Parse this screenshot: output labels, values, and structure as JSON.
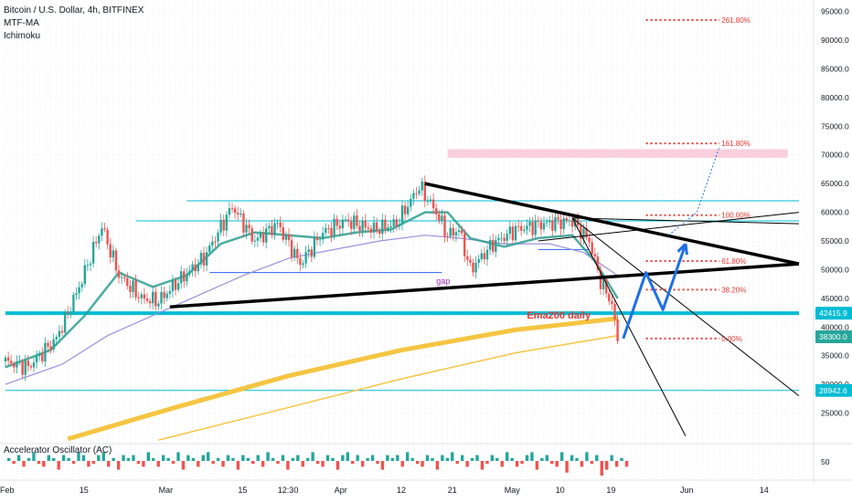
{
  "legend": {
    "symbol": "Bitcoin / U.S. Dollar, 4h, BITFINEX",
    "ind1": "MTF-MA",
    "ind2": "Ichimoku"
  },
  "oscillator": {
    "title": "Accelerator Oscillator (AC)",
    "scale_label": "50"
  },
  "colors": {
    "candle_up": "#26a69a",
    "candle_down": "#ef5350",
    "ema_teal": "#2e9e8f",
    "ema_purple": "#9c8fdc",
    "ema200": "#f5c542",
    "cyan": "#00bcd4",
    "black": "#000000",
    "fib_red": "#e53935",
    "arrow_blue": "#1e6fe6",
    "zone_pink": "#f8bbd0"
  },
  "chart_data": {
    "type": "line",
    "title": "Bitcoin / U.S. Dollar, 4h, BITFINEX",
    "ylim": [
      20000,
      97000
    ],
    "y_ticks": [
      "95000.0",
      "90000.0",
      "85000.0",
      "80000.0",
      "75000.0",
      "70000.0",
      "65000.0",
      "60000.0",
      "55000.0",
      "50000.0",
      "45000.0",
      "40000.0",
      "35000.0",
      "30000.0",
      "25000.0"
    ],
    "y_tick_values": [
      95000,
      90000,
      85000,
      80000,
      75000,
      70000,
      65000,
      60000,
      55000,
      50000,
      45000,
      40000,
      35000,
      30000,
      25000
    ],
    "x_ticks": [
      "Feb",
      "15",
      "Mar",
      "15",
      "12:30",
      "Apr",
      "12",
      "21",
      "May",
      "10",
      "19",
      "Jun",
      "14"
    ],
    "x_tick_days": [
      0,
      14,
      28,
      42,
      49,
      59,
      70,
      79,
      89,
      98,
      107,
      120,
      134
    ],
    "price_tags": [
      {
        "label": "42415.9",
        "value": 42415.9,
        "color": "#00bcd4"
      },
      {
        "label": "38300.0",
        "value": 38300,
        "color": "#26a69a"
      },
      {
        "label": "28942.6",
        "value": 28942.6,
        "color": "#00bcd4"
      }
    ],
    "price_path": [
      [
        0,
        34000
      ],
      [
        4,
        33000
      ],
      [
        9,
        38000
      ],
      [
        13,
        47000
      ],
      [
        17,
        57500
      ],
      [
        20,
        49000
      ],
      [
        24,
        45000
      ],
      [
        27,
        44500
      ],
      [
        30,
        47500
      ],
      [
        35,
        52000
      ],
      [
        40,
        61000
      ],
      [
        44,
        55000
      ],
      [
        48,
        58000
      ],
      [
        52,
        51000
      ],
      [
        56,
        56500
      ],
      [
        60,
        58500
      ],
      [
        65,
        57000
      ],
      [
        69,
        58000
      ],
      [
        73,
        64500
      ],
      [
        76,
        60000
      ],
      [
        78,
        56000
      ],
      [
        80,
        57000
      ],
      [
        82,
        50000
      ],
      [
        86,
        54500
      ],
      [
        90,
        57000
      ],
      [
        95,
        58000
      ],
      [
        100,
        58500
      ],
      [
        103,
        55000
      ],
      [
        105,
        48000
      ],
      [
        107,
        44000
      ],
      [
        108,
        37500
      ]
    ],
    "ema_teal": [
      [
        0,
        33000
      ],
      [
        8,
        36000
      ],
      [
        14,
        42000
      ],
      [
        20,
        49500
      ],
      [
        26,
        47000
      ],
      [
        32,
        49000
      ],
      [
        38,
        54500
      ],
      [
        44,
        56500
      ],
      [
        50,
        56000
      ],
      [
        56,
        55500
      ],
      [
        62,
        56500
      ],
      [
        68,
        57000
      ],
      [
        74,
        60000
      ],
      [
        78,
        60000
      ],
      [
        82,
        55500
      ],
      [
        88,
        54000
      ],
      [
        94,
        55500
      ],
      [
        100,
        56000
      ],
      [
        104,
        51500
      ],
      [
        108,
        45000
      ]
    ],
    "ema_purple": [
      [
        0,
        30000
      ],
      [
        10,
        33500
      ],
      [
        18,
        38500
      ],
      [
        26,
        42000
      ],
      [
        34,
        45500
      ],
      [
        42,
        49000
      ],
      [
        50,
        52000
      ],
      [
        58,
        53500
      ],
      [
        66,
        55000
      ],
      [
        74,
        56000
      ],
      [
        80,
        55500
      ],
      [
        88,
        54500
      ],
      [
        96,
        54500
      ],
      [
        102,
        53000
      ],
      [
        108,
        49000
      ]
    ],
    "ema200_daily": [
      [
        11,
        20500
      ],
      [
        30,
        26000
      ],
      [
        50,
        31500
      ],
      [
        70,
        36000
      ],
      [
        90,
        39500
      ],
      [
        108,
        41500
      ]
    ],
    "ema200_thin": [
      [
        27,
        20300
      ],
      [
        50,
        26000
      ],
      [
        70,
        31000
      ],
      [
        90,
        35500
      ],
      [
        108,
        38500
      ]
    ],
    "levels": [
      {
        "kind": "cyan",
        "value": 62000,
        "x0": 32,
        "x1": 140
      },
      {
        "kind": "cyan",
        "value": 58500,
        "x0": 23,
        "x1": 140
      },
      {
        "kind": "cyan",
        "value": 42415.9,
        "x0": 0,
        "x1": 140
      },
      {
        "kind": "cyan",
        "value": 28942.6,
        "x0": 0,
        "x1": 140
      },
      {
        "kind": "blue_thin",
        "value": 49500,
        "x0": 36,
        "x1": 77
      },
      {
        "kind": "blue_thin",
        "value": 53500,
        "x0": 94,
        "x1": 103
      }
    ],
    "trendlines": [
      {
        "kind": "black_thick",
        "p0": [
          29,
          43500
        ],
        "p1": [
          140,
          51000
        ]
      },
      {
        "kind": "black_thick",
        "p0": [
          74,
          65000
        ],
        "p1": [
          140,
          51000
        ]
      },
      {
        "kind": "black_thin",
        "p0": [
          100,
          59000
        ],
        "p1": [
          140,
          58000
        ]
      },
      {
        "kind": "black_thin",
        "p0": [
          100,
          59000
        ],
        "p1": [
          140,
          28000
        ]
      },
      {
        "kind": "black_thin",
        "p0": [
          100,
          59000
        ],
        "p1": [
          120,
          21000
        ]
      },
      {
        "kind": "black_thin",
        "p0": [
          94,
          55000
        ],
        "p1": [
          140,
          60000
        ]
      }
    ],
    "fib_levels": [
      {
        "label": "261.80%",
        "value": 93500
      },
      {
        "label": "161.80%",
        "value": 72000
      },
      {
        "label": "100.00%",
        "value": 59500
      },
      {
        "label": "61.80%",
        "value": 51500
      },
      {
        "label": "38.20%",
        "value": 46500
      },
      {
        "label": "0.00%",
        "value": 38000
      }
    ],
    "fib_x_range": [
      113,
      126
    ],
    "resistance_zone": {
      "y0": 69500,
      "y1": 71000,
      "x0": 78,
      "x1": 138
    },
    "projection_arrow": [
      [
        109,
        38000
      ],
      [
        113,
        49500
      ],
      [
        116,
        43000
      ],
      [
        120,
        54500
      ]
    ],
    "projection_dotted": [
      [
        117,
        56000
      ],
      [
        122,
        60000
      ],
      [
        126,
        71500
      ]
    ],
    "annotations": [
      {
        "label": "Ema200 daily",
        "x": 92,
        "value": 41500,
        "color": "#e53935"
      },
      {
        "label": "gap",
        "x": 76,
        "value": 47500,
        "color": "#9c27b0"
      }
    ],
    "oscillator_bars": [
      1,
      -1,
      2,
      -2,
      1,
      3,
      -1,
      -2,
      2,
      1,
      -3,
      2,
      1,
      -1,
      3,
      2,
      -2,
      -1,
      2,
      3,
      -2,
      1,
      -3,
      2,
      1,
      2,
      -1,
      -2,
      3,
      1,
      -2,
      2,
      1,
      -1,
      3,
      -3,
      2,
      1,
      -2,
      2,
      3,
      -1,
      1,
      -2,
      2,
      1,
      -3,
      2,
      1,
      -1,
      2,
      -2,
      3,
      1,
      -1,
      2,
      -3,
      1,
      2,
      -2,
      1,
      3,
      -1,
      -2,
      2,
      1,
      -3,
      2,
      3,
      -1,
      2,
      -2,
      1,
      2,
      -1,
      -3,
      2,
      1,
      2,
      -2,
      3,
      1,
      -1,
      -2,
      2,
      1,
      -3,
      2,
      1,
      3,
      -1,
      2,
      -2,
      1,
      2,
      -3,
      -1,
      2,
      1,
      -2,
      3,
      1,
      -2,
      -1,
      2,
      3,
      -3,
      1,
      2,
      -1,
      -2,
      3,
      -4,
      2,
      1,
      -2,
      3,
      -1,
      2,
      -5,
      -3,
      2,
      -2,
      1,
      -2
    ]
  }
}
